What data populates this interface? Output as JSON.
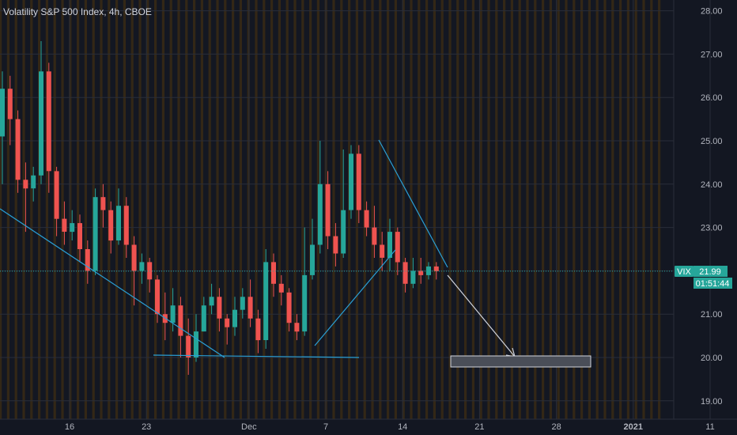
{
  "chart_data": {
    "type": "candlestick",
    "title": "Volatility S&P 500 Index, 4h, CBOE",
    "ylim": [
      18.9,
      28.2
    ],
    "y_ticks": [
      "28.00",
      "27.00",
      "26.00",
      "25.00",
      "24.00",
      "23.00",
      "22.00",
      "21.00",
      "20.00",
      "19.00"
    ],
    "y_tick_values": [
      28,
      27,
      26,
      25,
      24,
      23,
      22,
      21,
      20,
      19
    ],
    "x_ticks": [
      {
        "label": "16",
        "t": 3,
        "bold": false
      },
      {
        "label": "23",
        "t": 9,
        "bold": false
      },
      {
        "label": "Dec",
        "t": 17,
        "bold": false
      },
      {
        "label": "7",
        "t": 23,
        "bold": false
      },
      {
        "label": "14",
        "t": 29,
        "bold": false
      },
      {
        "label": "21",
        "t": 35,
        "bold": false
      },
      {
        "label": "28",
        "t": 41,
        "bold": false
      },
      {
        "label": "2021",
        "t": 47,
        "bold": true
      },
      {
        "label": "11",
        "t": 53,
        "bold": false
      }
    ],
    "last_price": {
      "symbol": "VIX",
      "value": "21.99",
      "price": 21.99,
      "countdown": "01:51:44"
    },
    "colors": {
      "up": "#26a69a",
      "down": "#ef5350",
      "line": "#2aa0d6",
      "bg": "#131722",
      "session": "#3a2a14",
      "arrow": "#d1d4dc"
    },
    "candles": [
      [
        25.1,
        26.2,
        26.6,
        24.0
      ],
      [
        26.2,
        25.5,
        26.5,
        24.9
      ],
      [
        25.5,
        24.1,
        25.7,
        23.8
      ],
      [
        24.1,
        23.9,
        24.5,
        22.9
      ],
      [
        23.9,
        24.2,
        24.4,
        23.6
      ],
      [
        24.2,
        26.6,
        27.3,
        24.0
      ],
      [
        26.6,
        24.3,
        26.8,
        23.8
      ],
      [
        24.3,
        23.2,
        24.4,
        22.8
      ],
      [
        23.2,
        22.9,
        23.6,
        22.6
      ],
      [
        22.9,
        23.1,
        23.4,
        22.7
      ],
      [
        23.1,
        22.5,
        23.3,
        22.2
      ],
      [
        22.5,
        22.0,
        22.7,
        21.7
      ],
      [
        22.0,
        23.7,
        23.9,
        21.9
      ],
      [
        23.7,
        23.4,
        24.0,
        23.0
      ],
      [
        23.4,
        22.7,
        23.6,
        22.4
      ],
      [
        22.7,
        23.5,
        23.9,
        22.6
      ],
      [
        23.5,
        22.6,
        23.7,
        22.3
      ],
      [
        22.6,
        22.0,
        22.8,
        21.2
      ],
      [
        22.0,
        22.2,
        22.4,
        21.7
      ],
      [
        22.2,
        21.8,
        22.3,
        21.5
      ],
      [
        21.8,
        21.0,
        21.9,
        20.8
      ],
      [
        21.0,
        20.8,
        21.5,
        20.4
      ],
      [
        20.8,
        21.2,
        21.6,
        20.6
      ],
      [
        21.2,
        20.5,
        21.4,
        20.0
      ],
      [
        20.5,
        20.0,
        20.9,
        19.6
      ],
      [
        20.0,
        20.6,
        21.0,
        19.9
      ],
      [
        20.6,
        21.2,
        21.4,
        20.6
      ],
      [
        21.2,
        21.4,
        21.7,
        21.0
      ],
      [
        21.4,
        20.9,
        21.6,
        20.6
      ],
      [
        20.9,
        20.7,
        21.0,
        20.3
      ],
      [
        20.7,
        21.1,
        21.4,
        20.5
      ],
      [
        21.1,
        21.4,
        21.6,
        20.9
      ],
      [
        21.4,
        20.9,
        21.8,
        20.7
      ],
      [
        20.9,
        20.4,
        21.1,
        20.1
      ],
      [
        20.4,
        22.2,
        22.5,
        20.2
      ],
      [
        22.2,
        21.7,
        22.4,
        21.4
      ],
      [
        21.7,
        21.5,
        21.9,
        21.2
      ],
      [
        21.5,
        20.8,
        21.6,
        20.6
      ],
      [
        20.8,
        20.6,
        21.0,
        20.4
      ],
      [
        20.6,
        21.9,
        23.0,
        20.5
      ],
      [
        21.9,
        22.6,
        23.2,
        21.8
      ],
      [
        22.6,
        24.0,
        25.0,
        22.4
      ],
      [
        24.0,
        22.8,
        24.3,
        22.5
      ],
      [
        22.8,
        22.4,
        23.1,
        22.1
      ],
      [
        22.4,
        23.4,
        24.8,
        22.3
      ],
      [
        23.4,
        24.7,
        24.9,
        23.2
      ],
      [
        24.7,
        23.4,
        24.9,
        23.1
      ],
      [
        23.4,
        23.0,
        23.6,
        22.8
      ],
      [
        23.0,
        22.6,
        23.5,
        22.3
      ],
      [
        22.6,
        22.3,
        22.9,
        22.0
      ],
      [
        22.3,
        22.9,
        23.2,
        22.0
      ],
      [
        22.9,
        22.2,
        23.0,
        21.9
      ],
      [
        22.2,
        21.7,
        22.3,
        21.5
      ],
      [
        21.7,
        22.0,
        22.3,
        21.6
      ],
      [
        22.0,
        21.9,
        22.3,
        21.7
      ],
      [
        21.9,
        22.1,
        22.2,
        21.8
      ],
      [
        22.1,
        21.99,
        22.2,
        21.8
      ]
    ]
  }
}
